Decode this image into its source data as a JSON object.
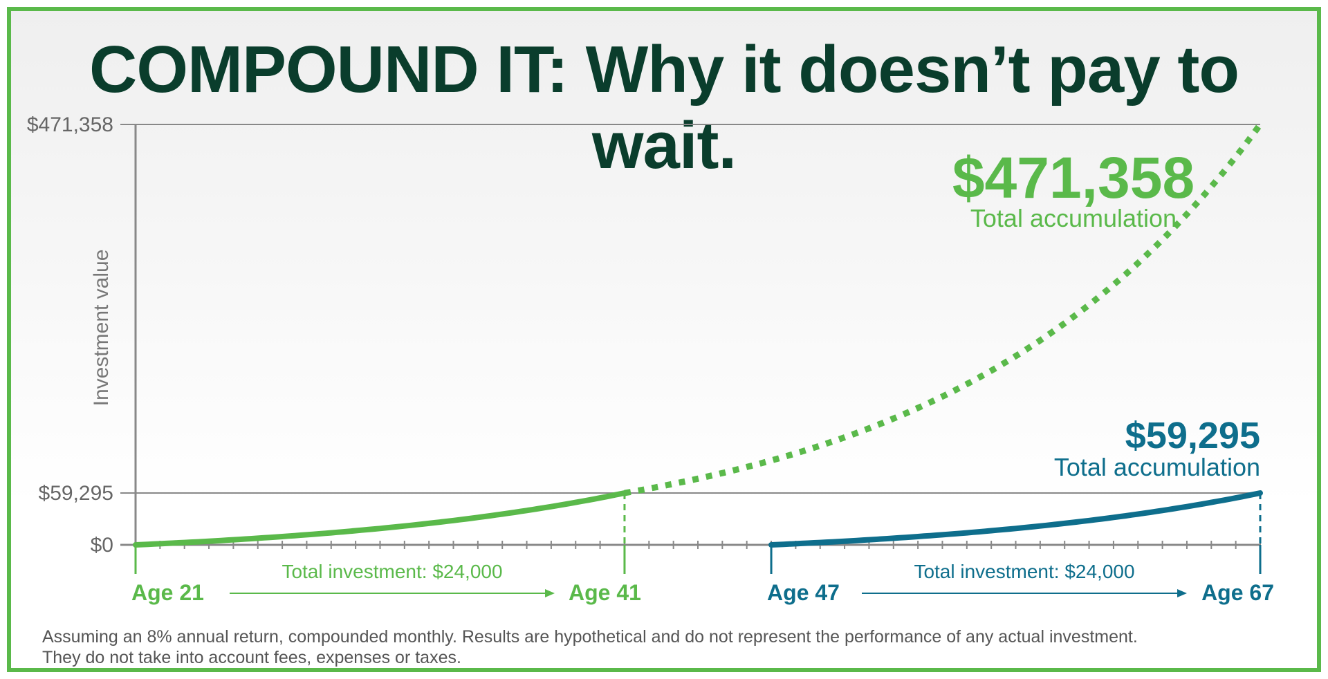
{
  "title": "COMPOUND IT: Why it doesn’t pay to wait.",
  "colors": {
    "early": "#5ab94a",
    "late": "#0e6e8c",
    "axis": "#888888",
    "title": "#0a3d2c",
    "text": "#555555"
  },
  "chart_data": {
    "type": "line",
    "ylabel": "Investment value",
    "yticks": [
      {
        "value": 0,
        "label": "$0"
      },
      {
        "value": 59295,
        "label": "$59,295"
      },
      {
        "value": 471358,
        "label": "$471,358"
      }
    ],
    "ylim": [
      0,
      471358
    ],
    "xlim": [
      21,
      67
    ],
    "grid": false,
    "annual_return_pct": 8,
    "series": [
      {
        "id": "early",
        "start_age": 21,
        "stop_age": 41,
        "end_age": 67,
        "start_label": "Age 21",
        "stop_label": "Age 41",
        "value_at_stop": 59295,
        "final_value": 471358,
        "final_label": "$471,358",
        "final_caption": "Total accumulation",
        "investment_label": "Total investment: $24,000"
      },
      {
        "id": "late",
        "start_age": 47,
        "stop_age": 67,
        "start_label": "Age 47",
        "stop_label": "Age 67",
        "value_at_stop": 59295,
        "final_value": 59295,
        "final_label": "$59,295",
        "final_caption": "Total accumulation",
        "investment_label": "Total investment: $24,000"
      }
    ]
  },
  "footnote": [
    "Assuming an 8% annual return, compounded monthly. Results are hypothetical and do not represent the performance of any actual investment.",
    "They do not take into account fees, expenses or taxes."
  ]
}
